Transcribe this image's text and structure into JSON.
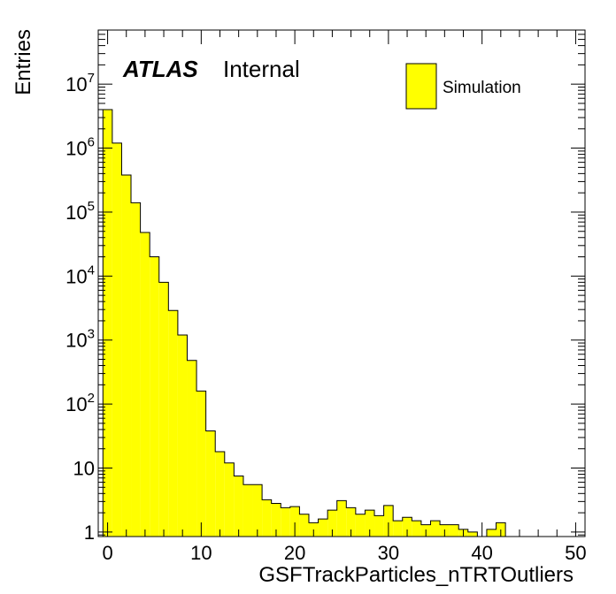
{
  "chart_data": {
    "type": "bar",
    "xlabel": "GSFTrackParticles_nTRTOutliers",
    "ylabel": "Entries",
    "label_atlas": "ATLAS",
    "label_status": "Internal",
    "xlim": [
      -1,
      51
    ],
    "ylim": [
      0.85,
      70000000
    ],
    "yscale": "log",
    "bin_width": 1,
    "x_ticks": [
      {
        "value": 0,
        "label": "0"
      },
      {
        "value": 10,
        "label": "10"
      },
      {
        "value": 20,
        "label": "20"
      },
      {
        "value": 30,
        "label": "30"
      },
      {
        "value": 40,
        "label": "40"
      },
      {
        "value": 50,
        "label": "50"
      }
    ],
    "y_ticks": [
      {
        "value": 1,
        "base": "1",
        "exp": ""
      },
      {
        "value": 10,
        "base": "10",
        "exp": ""
      },
      {
        "value": 100,
        "base": "10",
        "exp": "2"
      },
      {
        "value": 1000,
        "base": "10",
        "exp": "3"
      },
      {
        "value": 10000,
        "base": "10",
        "exp": "4"
      },
      {
        "value": 100000,
        "base": "10",
        "exp": "5"
      },
      {
        "value": 1000000,
        "base": "10",
        "exp": "6"
      },
      {
        "value": 10000000,
        "base": "10",
        "exp": "7"
      }
    ],
    "fill_color": "#ffff00",
    "line_color": "#000000",
    "grid": false,
    "legend_position": "top-right",
    "series": [
      {
        "name": "Simulation",
        "bin_low_edges": [
          -0.5,
          0.5,
          1.5,
          2.5,
          3.5,
          4.5,
          5.5,
          6.5,
          7.5,
          8.5,
          9.5,
          10.5,
          11.5,
          12.5,
          13.5,
          14.5,
          15.5,
          16.5,
          17.5,
          18.5,
          19.5,
          20.5,
          21.5,
          22.5,
          23.5,
          24.5,
          25.5,
          26.5,
          27.5,
          28.5,
          29.5,
          30.5,
          31.5,
          32.5,
          33.5,
          34.5,
          35.5,
          36.5,
          37.5,
          38.5,
          39.5,
          40.5,
          41.5,
          42.5,
          43.5,
          44.5,
          45.5,
          46.5,
          47.5,
          48.5
        ],
        "values": [
          4000000,
          1200000,
          380000,
          140000,
          48000,
          20000,
          8000,
          2900,
          1200,
          480,
          160,
          38,
          18,
          12,
          7.5,
          5.5,
          5.5,
          3.2,
          2.8,
          2.4,
          2.5,
          1.9,
          1.4,
          1.6,
          2.2,
          3.1,
          2.4,
          1.9,
          2.2,
          1.8,
          2.6,
          1.5,
          1.7,
          1.5,
          1.3,
          1.5,
          1.3,
          1.3,
          1.1,
          1.0,
          0,
          1.1,
          1.4,
          0,
          0,
          0,
          0,
          0,
          0,
          0
        ]
      }
    ]
  }
}
